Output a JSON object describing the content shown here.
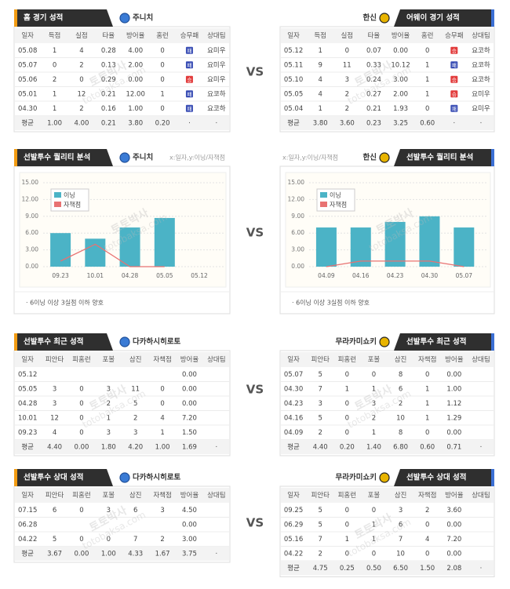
{
  "vs": "VS",
  "watermark": {
    "name": "토토박사",
    "site": "totobaksa.com"
  },
  "result_colors": {
    "승": "#e23c3c",
    "패": "#3b4fb5"
  },
  "tables": [
    {
      "title": "홈 경기 성적",
      "team": "주니치",
      "columns": [
        "일자",
        "득점",
        "실점",
        "타율",
        "방어율",
        "홈런",
        "승무패",
        "상대팀"
      ],
      "rows": [
        [
          "05.08",
          "1",
          "4",
          "0.28",
          "4.00",
          "0",
          "패",
          "요미우"
        ],
        [
          "05.07",
          "0",
          "2",
          "0.13",
          "2.00",
          "0",
          "패",
          "요미우"
        ],
        [
          "05.06",
          "2",
          "0",
          "0.29",
          "0.00",
          "0",
          "승",
          "요미우"
        ],
        [
          "05.01",
          "1",
          "12",
          "0.21",
          "12.00",
          "1",
          "패",
          "요코하"
        ],
        [
          "04.30",
          "1",
          "2",
          "0.16",
          "1.00",
          "0",
          "패",
          "요코하"
        ]
      ],
      "average": [
        "평균",
        "1.00",
        "4.00",
        "0.21",
        "3.80",
        "0.20",
        "·",
        "·"
      ]
    },
    {
      "title": "어웨이 경기 성적",
      "team": "한신",
      "columns": [
        "일자",
        "득점",
        "실점",
        "타율",
        "방어율",
        "홈런",
        "승무패",
        "상대팀"
      ],
      "rows": [
        [
          "05.12",
          "1",
          "0",
          "0.07",
          "0.00",
          "0",
          "승",
          "요코하"
        ],
        [
          "05.11",
          "9",
          "11",
          "0.33",
          "10.12",
          "1",
          "패",
          "요코하"
        ],
        [
          "05.10",
          "4",
          "3",
          "0.24",
          "3.00",
          "1",
          "승",
          "요코하"
        ],
        [
          "05.05",
          "4",
          "2",
          "0.27",
          "2.00",
          "1",
          "승",
          "요미우"
        ],
        [
          "05.04",
          "1",
          "2",
          "0.21",
          "1.93",
          "0",
          "패",
          "요미우"
        ]
      ],
      "average": [
        "평균",
        "3.80",
        "3.60",
        "0.23",
        "3.25",
        "0.60",
        "·",
        "·"
      ]
    },
    {
      "title": "선발투수 최근 성적",
      "team": "다카하시히로토",
      "columns": [
        "일자",
        "피안타",
        "피홈런",
        "포볼",
        "삼진",
        "자책점",
        "방어율",
        "상대팀"
      ],
      "rows": [
        [
          "05.12",
          null,
          null,
          null,
          null,
          null,
          "0.00",
          null
        ],
        [
          "05.05",
          "3",
          "0",
          "3",
          "11",
          "0",
          "0.00",
          null
        ],
        [
          "04.28",
          "3",
          "0",
          "2",
          "5",
          "0",
          "0.00",
          null
        ],
        [
          "10.01",
          "12",
          "0",
          "1",
          "2",
          "4",
          "7.20",
          null
        ],
        [
          "09.23",
          "4",
          "0",
          "3",
          "3",
          "1",
          "1.50",
          null
        ]
      ],
      "average": [
        "평균",
        "4.40",
        "0.00",
        "1.80",
        "4.20",
        "1.00",
        "1.69",
        "·"
      ]
    },
    {
      "title": "선발투수 최근 성적",
      "team": "무라카미쇼키",
      "columns": [
        "일자",
        "피안타",
        "피홈런",
        "포볼",
        "삼진",
        "자책점",
        "방어율",
        "상대팀"
      ],
      "rows": [
        [
          "05.07",
          "5",
          "0",
          "0",
          "8",
          "0",
          "0.00",
          null
        ],
        [
          "04.30",
          "7",
          "1",
          "1",
          "6",
          "1",
          "1.00",
          null
        ],
        [
          "04.23",
          "3",
          "0",
          "3",
          "2",
          "1",
          "1.12",
          null
        ],
        [
          "04.16",
          "5",
          "0",
          "2",
          "10",
          "1",
          "1.29",
          null
        ],
        [
          "04.09",
          "2",
          "0",
          "1",
          "8",
          "0",
          "0.00",
          null
        ]
      ],
      "average": [
        "평균",
        "4.40",
        "0.20",
        "1.40",
        "6.80",
        "0.60",
        "0.71",
        "·"
      ]
    },
    {
      "title": "선발투수 상대 성적",
      "team": "다카하시히로토",
      "columns": [
        "일자",
        "피안타",
        "피홈런",
        "포볼",
        "삼진",
        "자책점",
        "방어율",
        "상대팀"
      ],
      "rows": [
        [
          "07.15",
          "6",
          "0",
          "3",
          "6",
          "3",
          "4.50",
          null
        ],
        [
          "06.28",
          null,
          null,
          null,
          null,
          null,
          "0.00",
          null
        ],
        [
          "04.22",
          "5",
          "0",
          "0",
          "7",
          "2",
          "3.00",
          null
        ]
      ],
      "average": [
        "평균",
        "3.67",
        "0.00",
        "1.00",
        "4.33",
        "1.67",
        "3.75",
        "·"
      ]
    },
    {
      "title": "선발투수 상대 성적",
      "team": "무라카미쇼키",
      "columns": [
        "일자",
        "피안타",
        "피홈런",
        "포볼",
        "삼진",
        "자책점",
        "방어율",
        "상대팀"
      ],
      "rows": [
        [
          "09.25",
          "5",
          "0",
          "0",
          "3",
          "2",
          "3.60",
          null
        ],
        [
          "06.29",
          "5",
          "0",
          "1",
          "6",
          "0",
          "0.00",
          null
        ],
        [
          "05.16",
          "7",
          "1",
          "1",
          "7",
          "4",
          "7.20",
          null
        ],
        [
          "04.22",
          "2",
          "0",
          "0",
          "10",
          "0",
          "0.00",
          null
        ]
      ],
      "average": [
        "평균",
        "4.75",
        "0.25",
        "0.50",
        "6.50",
        "1.50",
        "2.08",
        "·"
      ]
    }
  ],
  "chart_data": [
    {
      "type": "bar",
      "title": "선발투수 퀄리티 분석",
      "team": "주니치",
      "axis_note": "x:일자,y:이닝/자책점",
      "categories": [
        "09.23",
        "10.01",
        "04.28",
        "05.05",
        "05.12"
      ],
      "series": [
        {
          "name": "이닝",
          "type": "bar",
          "color": "#4bb3c6",
          "values": [
            6,
            5,
            7,
            8.7,
            null
          ]
        },
        {
          "name": "자책점",
          "type": "line",
          "color": "#e87272",
          "values": [
            1,
            4,
            0,
            0,
            null
          ]
        }
      ],
      "ylim": [
        0,
        15
      ],
      "yticks": [
        {
          "value": 0,
          "label": "0.00"
        },
        {
          "value": 3,
          "label": "3.00"
        },
        {
          "value": 6,
          "label": "6.00"
        },
        {
          "value": 9,
          "label": "9.00"
        },
        {
          "value": 12,
          "label": "12.00"
        },
        {
          "value": 15,
          "label": "15.00"
        }
      ],
      "grid": true,
      "note": "· 6이닝 이상 3실점 이하 양호"
    },
    {
      "type": "bar",
      "title": "선발투수 퀄리티 분석",
      "team": "한신",
      "axis_note": "x:일자,y:이닝/자책점",
      "categories": [
        "04.09",
        "04.16",
        "04.23",
        "04.30",
        "05.07"
      ],
      "series": [
        {
          "name": "이닝",
          "type": "bar",
          "color": "#4bb3c6",
          "values": [
            7,
            7,
            8,
            9,
            7
          ]
        },
        {
          "name": "자책점",
          "type": "line",
          "color": "#e87272",
          "values": [
            0,
            1,
            1,
            1,
            0
          ]
        }
      ],
      "ylim": [
        0,
        15
      ],
      "yticks": [
        {
          "value": 0,
          "label": "0.00"
        },
        {
          "value": 3,
          "label": "3.00"
        },
        {
          "value": 6,
          "label": "6.00"
        },
        {
          "value": 9,
          "label": "9.00"
        },
        {
          "value": 12,
          "label": "12.00"
        },
        {
          "value": 15,
          "label": "15.00"
        }
      ],
      "grid": true,
      "note": "· 6이닝 이상 3실점 이하 양호"
    }
  ]
}
